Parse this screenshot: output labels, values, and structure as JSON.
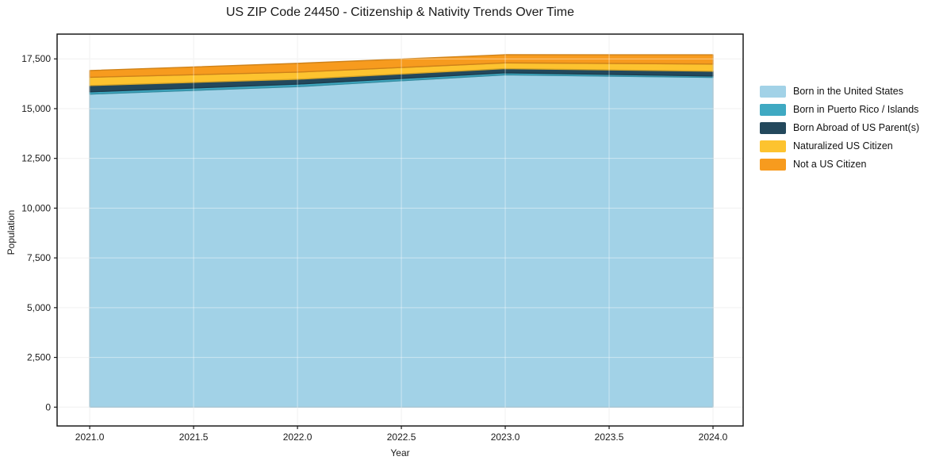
{
  "title": "US ZIP Code 24450 - Citizenship & Nativity Trends Over Time",
  "chart_data": {
    "type": "area",
    "stacked": true,
    "title": "US ZIP Code 24450 - Citizenship & Nativity Trends Over Time",
    "xlabel": "Year",
    "ylabel": "Population",
    "x": [
      2021,
      2022,
      2023,
      2024
    ],
    "series": [
      {
        "name": "Born in the United States",
        "color": "#a2d2e7",
        "values": [
          15730,
          16105,
          16700,
          16570
        ]
      },
      {
        "name": "Born in Puerto Rico / Islands",
        "color": "#3fa9c2",
        "values": [
          115,
          125,
          100,
          70
        ]
      },
      {
        "name": "Born Abroad of US Parent(s)",
        "color": "#23485c",
        "values": [
          315,
          245,
          210,
          240
        ]
      },
      {
        "name": "Naturalized US Citizen",
        "color": "#fdc32f",
        "values": [
          415,
          360,
          290,
          360
        ]
      },
      {
        "name": "Not a US Citizen",
        "color": "#f79b1e",
        "values": [
          340,
          440,
          410,
          465
        ]
      }
    ],
    "x_ticks": [
      2021.0,
      2021.5,
      2022.0,
      2022.5,
      2023.0,
      2023.5,
      2024.0
    ],
    "x_tick_labels": [
      "2021.0",
      "2021.5",
      "2022.0",
      "2022.5",
      "2023.0",
      "2023.5",
      "2024.0"
    ],
    "y_ticks": [
      0,
      2500,
      5000,
      7500,
      10000,
      12500,
      15000,
      17500
    ],
    "y_tick_labels": [
      "0",
      "2,500",
      "5,000",
      "7,500",
      "10,000",
      "12,500",
      "15,000",
      "17,500"
    ],
    "xlim": [
      2020.843,
      2024.145
    ],
    "ylim": [
      -945,
      18745
    ],
    "grid": true,
    "legend_position": "right",
    "colors": {
      "background": "#ffffff",
      "gridline": "#e8e8e8",
      "spine": "#1a1a1a",
      "tick_text": "#1a1a1a"
    }
  }
}
